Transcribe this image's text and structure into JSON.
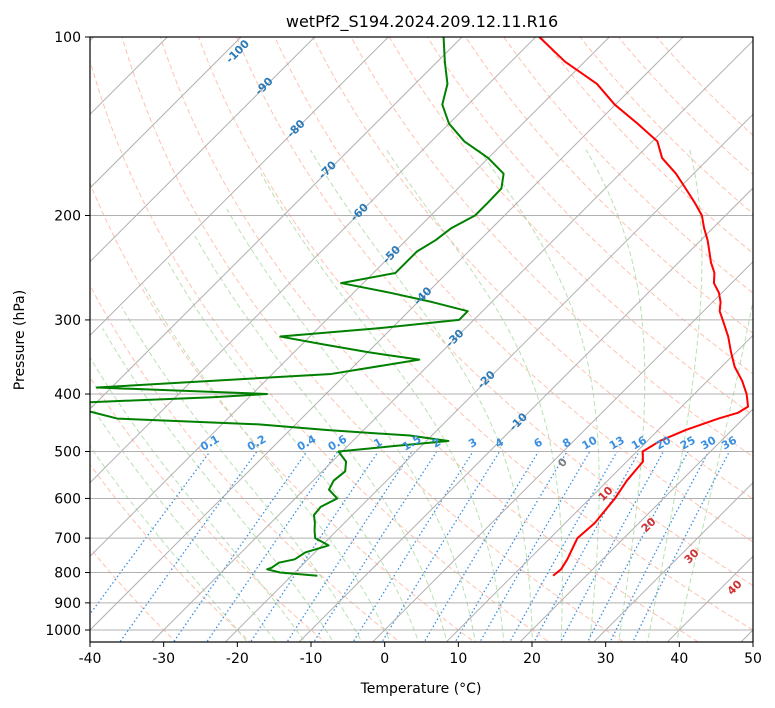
{
  "chart_data": {
    "type": "line",
    "diagram": "skew-t log-p",
    "title": "wetPf2_S194.2024.209.12.11.R16",
    "xlabel": "Temperature (°C)",
    "ylabel": "Pressure (hPa)",
    "xlim": [
      -40,
      50
    ],
    "ylim": [
      1050,
      100
    ],
    "y_scale": "log",
    "grid": true,
    "x_ticks": [
      "-40",
      "-30",
      "-20",
      "-10",
      "0",
      "10",
      "20",
      "30",
      "40",
      "50"
    ],
    "y_ticks": [
      "100",
      "200",
      "300",
      "400",
      "500",
      "600",
      "700",
      "800",
      "900",
      "1000"
    ],
    "colors": {
      "temperature": "#ff0000",
      "dewpoint": "#008000",
      "isotherm_grid": "#b0b0b0",
      "isobar_grid": "#b0b0b0",
      "dry_adiabat": "#ffb39c",
      "moist_adiabat": "#a8d8a0",
      "mixing_ratio": "#3a8fe0",
      "isotherm_labels": "#2a7ab8",
      "dry_adiabat_labels": "#d03030",
      "zero_label": "#808080"
    },
    "series": [
      {
        "name": "",
        "role": "temperature",
        "pressure": [
          810,
          790,
          760,
          720,
          700,
          660,
          600,
          560,
          520,
          500,
          480,
          460,
          440,
          430,
          420,
          400,
          380,
          360,
          340,
          320,
          300,
          290,
          280,
          270,
          260,
          250,
          240,
          230,
          220,
          210,
          200,
          190,
          180,
          170,
          160,
          150,
          140,
          130,
          120,
          110,
          100
        ],
        "temperature": [
          15.5,
          15.7,
          15.2,
          14.2,
          13.7,
          14.0,
          13.4,
          12.6,
          12.2,
          10.8,
          11.7,
          13.7,
          16.6,
          18.5,
          19.0,
          17.1,
          14.7,
          11.8,
          9.3,
          6.8,
          3.8,
          2.2,
          1.1,
          -0.4,
          -2.4,
          -3.7,
          -5.6,
          -7.3,
          -9.1,
          -11.2,
          -13.2,
          -16.0,
          -19.1,
          -22.4,
          -26.4,
          -29.3,
          -34.4,
          -40.1,
          -45.3,
          -52.7,
          -59.5
        ]
      },
      {
        "name": "",
        "role": "dewpoint",
        "pressure": [
          810,
          800,
          790,
          785,
          770,
          760,
          740,
          720,
          700,
          680,
          660,
          640,
          620,
          600,
          580,
          560,
          540,
          520,
          500,
          490,
          480,
          470,
          460,
          450,
          440,
          415,
          410,
          405,
          400,
          390,
          370,
          350,
          340,
          330,
          320,
          310,
          300,
          290,
          280,
          270,
          260,
          250,
          240,
          230,
          220,
          210,
          200,
          190,
          180,
          170,
          160,
          150,
          140,
          130,
          120,
          110,
          100
        ],
        "dewpoint": [
          -16.5,
          -22.0,
          -24.2,
          -23.8,
          -23.5,
          -21.8,
          -21.3,
          -19.1,
          -21.9,
          -23.0,
          -24.0,
          -25.2,
          -25.4,
          -24.3,
          -26.6,
          -27.2,
          -26.9,
          -28.1,
          -30.5,
          -24.0,
          -17.0,
          -23.0,
          -35.0,
          -45.0,
          -65.0,
          -75.0,
          -65.0,
          -55.0,
          -48.0,
          -72.0,
          -42.0,
          -32.0,
          -40.0,
          -47.0,
          -54.0,
          -42.0,
          -32.0,
          -32.0,
          -38.0,
          -45.0,
          -53.0,
          -47.0,
          -47.0,
          -47.0,
          -46.0,
          -45.5,
          -44.0,
          -44.0,
          -44.1,
          -45.8,
          -50.0,
          -55.5,
          -60.0,
          -63.5,
          -65.6,
          -69.0,
          -72.5
        ]
      }
    ],
    "isotherm_labels": [
      "-100",
      "-90",
      "-80",
      "-70",
      "-60",
      "-50",
      "-40",
      "-30",
      "-20",
      "-10"
    ],
    "mixing_ratio_labels": [
      "0.1",
      "0.2",
      "0.4",
      "0.6",
      "1",
      "1.5",
      "2",
      "3",
      "4",
      "6",
      "8",
      "10",
      "13",
      "16",
      "20",
      "25",
      "30",
      "36"
    ],
    "dry_adiabat_labels": [
      "0",
      "10",
      "20",
      "30",
      "40"
    ]
  }
}
